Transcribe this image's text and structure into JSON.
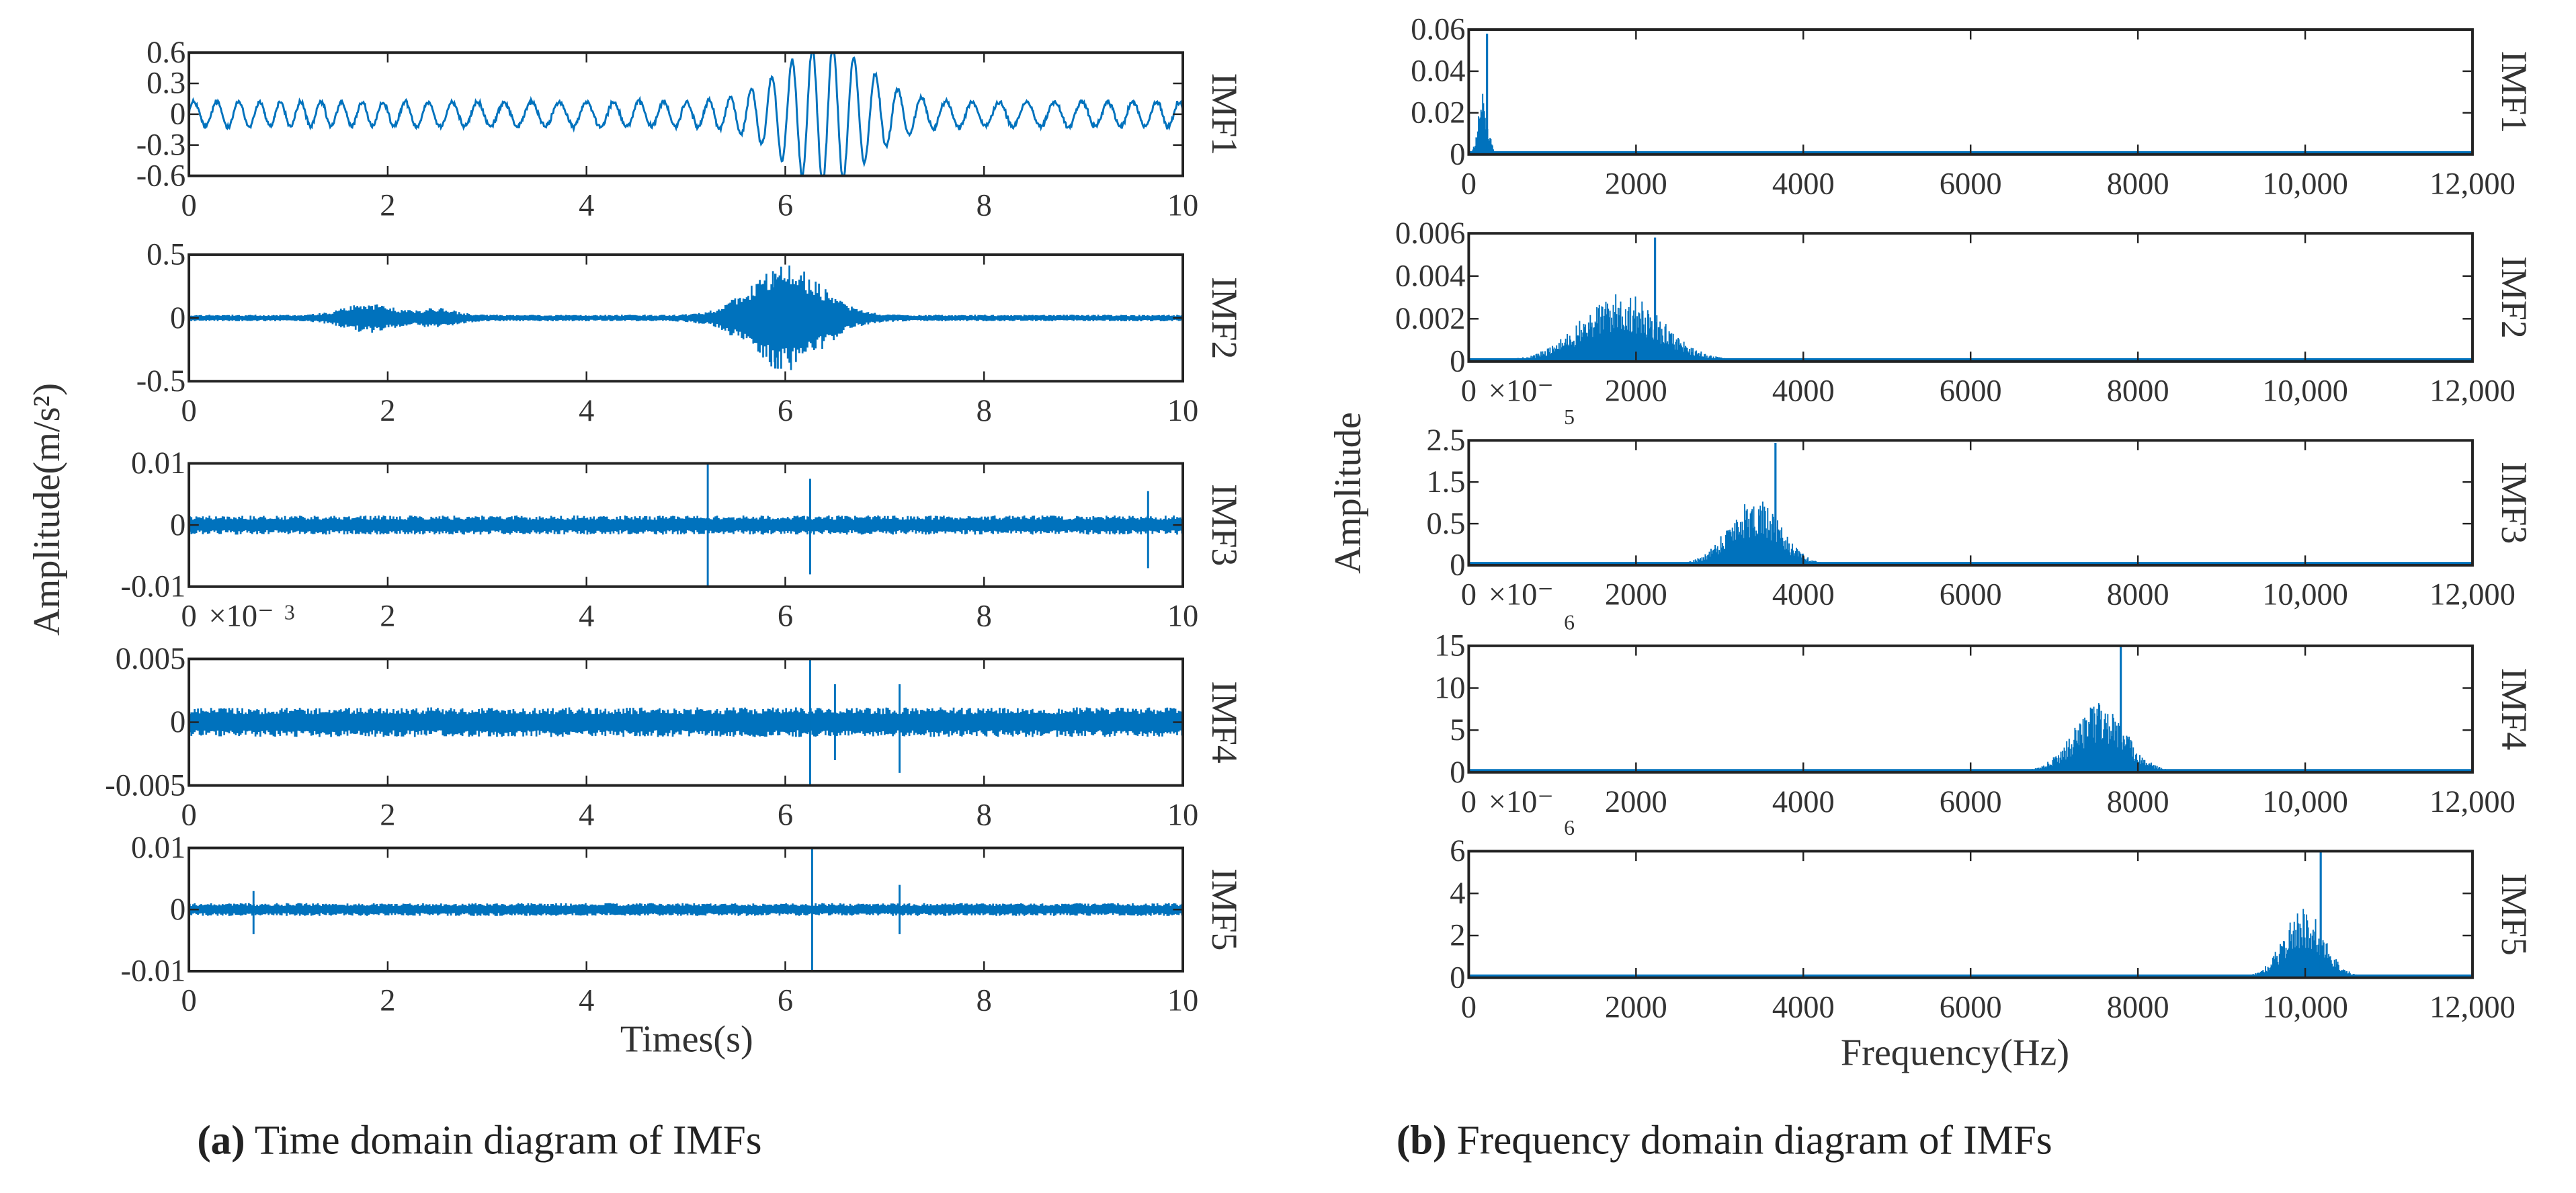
{
  "colors": {
    "series": "#0072BD",
    "axis": "#222222",
    "text": "#333333"
  },
  "captions": {
    "a_letter": "(a)",
    "a_text": " Time domain diagram of IMFs",
    "b_letter": "(b)",
    "b_text": " Frequency domain diagram of IMFs"
  },
  "chart_data": [
    {
      "type": "line",
      "title": "Time domain diagram of IMFs",
      "xlabel": "Times(s)",
      "ylabel": "Amplitude(m/s²)",
      "xlim": [
        0,
        10
      ],
      "xticks": [
        "0",
        "2",
        "4",
        "6",
        "8",
        "10"
      ],
      "panels": [
        {
          "name": "IMF1",
          "ylim": [
            -0.6,
            0.6
          ],
          "yticks": [
            -0.6,
            -0.3,
            0,
            0.3,
            0.6
          ],
          "ytick_labels": [
            "-0.6",
            "-0.3",
            "0",
            "0.3",
            "0.6"
          ],
          "multiplier": "",
          "base_amplitude": 0.12,
          "burst": {
            "center": 6.4,
            "width": 0.6,
            "amplitude": 0.55
          },
          "peaks": [
            {
              "x": 6.45,
              "y": 0.6
            },
            {
              "x": 6.4,
              "y": -0.6
            }
          ]
        },
        {
          "name": "IMF2",
          "ylim": [
            -0.5,
            0.5
          ],
          "yticks": [
            -0.5,
            0,
            0.5
          ],
          "ytick_labels": [
            "-0.5",
            "0",
            "0.5"
          ],
          "multiplier": "",
          "base_amplitude": 0.02,
          "bursts": [
            {
              "center": 1.8,
              "width": 0.35,
              "amplitude": 0.07
            },
            {
              "center": 2.5,
              "width": 0.25,
              "amplitude": 0.04
            },
            {
              "center": 6.0,
              "width": 0.5,
              "amplitude": 0.3
            }
          ],
          "peaks": [
            {
              "x": 5.9,
              "y": 0.35
            },
            {
              "x": 5.9,
              "y": -0.4
            }
          ]
        },
        {
          "name": "IMF3",
          "ylim": [
            -0.01,
            0.01
          ],
          "yticks": [
            -0.01,
            0,
            0.01
          ],
          "ytick_labels": [
            "-0.01",
            "0",
            "0.01"
          ],
          "multiplier": "×10⁻",
          "base_amplitude": 0.0012,
          "spikes": [
            {
              "x": 5.22,
              "y": 0.01
            },
            {
              "x": 5.22,
              "y": -0.01
            },
            {
              "x": 6.25,
              "y": 0.0075
            },
            {
              "x": 6.25,
              "y": -0.008
            },
            {
              "x": 9.65,
              "y": 0.0055
            },
            {
              "x": 9.65,
              "y": -0.007
            }
          ]
        },
        {
          "name": "IMF4",
          "ylim": [
            -0.005,
            0.005
          ],
          "yticks": [
            -0.005,
            0,
            0.005
          ],
          "ytick_labels": [
            "-0.005",
            "0",
            "0.005"
          ],
          "multiplier": "3",
          "base_amplitude": 0.0009,
          "spikes": [
            {
              "x": 6.25,
              "y": 0.005
            },
            {
              "x": 6.25,
              "y": -0.005
            },
            {
              "x": 6.5,
              "y": 0.003
            },
            {
              "x": 6.5,
              "y": -0.003
            },
            {
              "x": 7.15,
              "y": 0.003
            },
            {
              "x": 7.15,
              "y": -0.004
            }
          ]
        },
        {
          "name": "IMF5",
          "ylim": [
            -0.01,
            0.01
          ],
          "yticks": [
            -0.01,
            0,
            0.01
          ],
          "ytick_labels": [
            "-0.01",
            "0",
            "0.01"
          ],
          "multiplier": "",
          "base_amplitude": 0.0008,
          "spikes": [
            {
              "x": 0.65,
              "y": 0.003
            },
            {
              "x": 0.65,
              "y": -0.004
            },
            {
              "x": 6.27,
              "y": 0.01
            },
            {
              "x": 6.27,
              "y": -0.01
            },
            {
              "x": 7.15,
              "y": 0.004
            },
            {
              "x": 7.15,
              "y": -0.004
            }
          ]
        }
      ]
    },
    {
      "type": "bar",
      "title": "Frequency domain diagram of IMFs",
      "xlabel": "Frequency(Hz)",
      "ylabel": "Amplitude",
      "xlim": [
        0,
        12500
      ],
      "xticks": [
        "0",
        "2000",
        "4000",
        "6000",
        "8000",
        "10,000",
        "12,000"
      ],
      "panels": [
        {
          "name": "IMF1",
          "ylim": [
            0,
            0.06
          ],
          "ytick_labels": [
            "0",
            "0.02",
            "0.04",
            "0.06"
          ],
          "multiplier": "",
          "peak_freq": 180,
          "spread": 80,
          "peak": 0.058
        },
        {
          "name": "IMF2",
          "ylim": [
            0,
            0.006
          ],
          "ytick_labels": [
            "0",
            "0.002",
            "0.004",
            "0.006"
          ],
          "multiplier": "×10⁻",
          "peak_freq": 1900,
          "spread": 700,
          "peak": 0.0058
        },
        {
          "name": "IMF3",
          "ylim": [
            0,
            2.5
          ],
          "ytick_labels": [
            "0",
            "0.5",
            "1.5",
            "2.5"
          ],
          "multiplier": "5",
          "multiplier2": "×10⁻",
          "peak_freq": 3550,
          "spread": 450,
          "peak": 2.45
        },
        {
          "name": "IMF4",
          "ylim": [
            0,
            15
          ],
          "ytick_labels": [
            "0",
            "5",
            "10",
            "15"
          ],
          "multiplier": "6",
          "multiplier2": "×10⁻",
          "peak_freq": 7850,
          "spread": 450,
          "peak": 15
        },
        {
          "name": "IMF5",
          "ylim": [
            0,
            6
          ],
          "ytick_labels": [
            "0",
            "2",
            "4",
            "6"
          ],
          "multiplier": "6",
          "peak_freq": 10400,
          "spread": 350,
          "peak": 6
        }
      ]
    }
  ]
}
